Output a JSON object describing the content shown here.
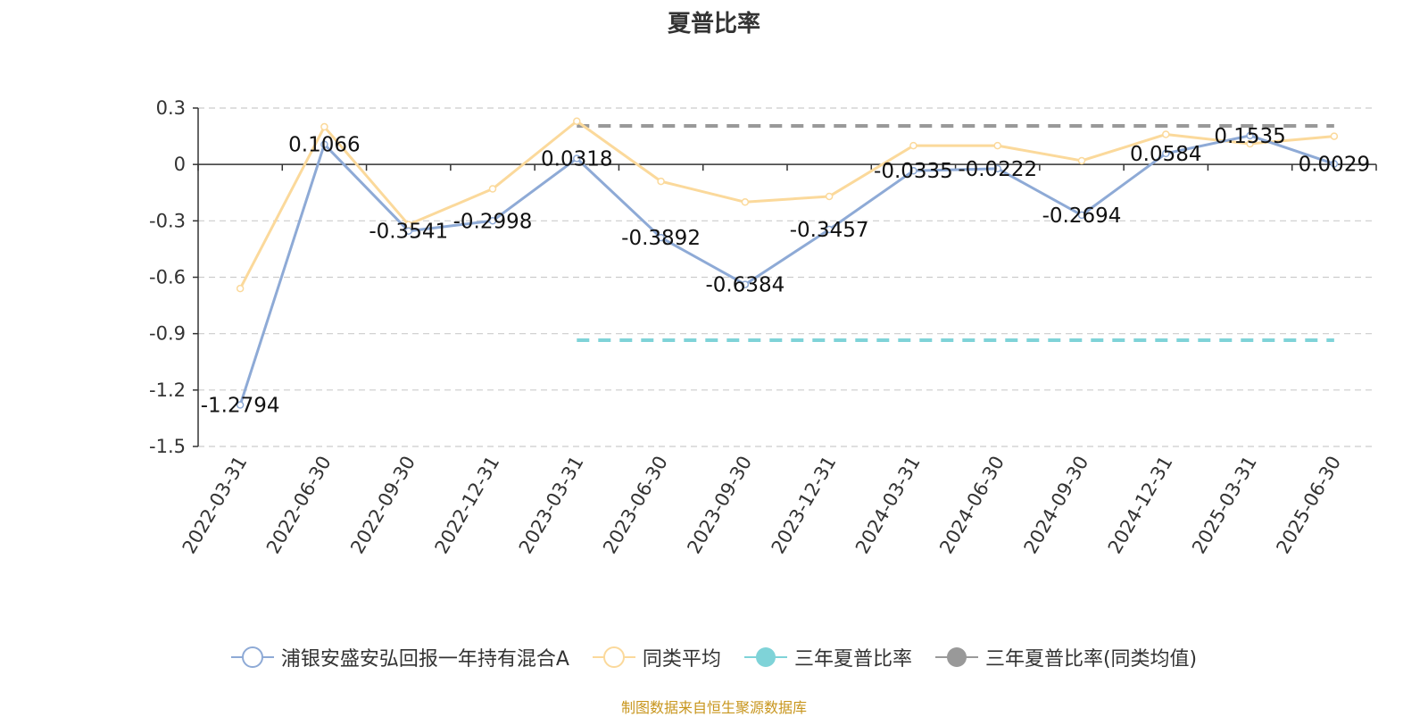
{
  "chart_data": {
    "type": "line",
    "title": "夏普比率",
    "categories": [
      "2022-03-31",
      "2022-06-30",
      "2022-09-30",
      "2022-12-31",
      "2023-03-31",
      "2023-06-30",
      "2023-09-30",
      "2023-12-31",
      "2024-03-31",
      "2024-06-30",
      "2024-09-30",
      "2024-12-31",
      "2025-03-31",
      "2025-06-30"
    ],
    "ylim": [
      -1.5,
      0.3
    ],
    "yticks": [
      "0.3",
      "0",
      "-0.3",
      "-0.6",
      "-0.9",
      "-1.2",
      "-1.5"
    ],
    "grid": true,
    "legend_position": "bottom",
    "series": [
      {
        "name": "浦银安盛安弘回报一年持有混合A",
        "color": "#8eaad6",
        "values": [
          -1.2794,
          0.1066,
          -0.3541,
          -0.2998,
          0.0318,
          -0.3892,
          -0.6384,
          -0.3457,
          -0.0335,
          -0.0222,
          -0.2694,
          0.0584,
          0.1535,
          0.0029
        ],
        "labels": [
          "-1.2794",
          "0.1066",
          "-0.3541",
          "-0.2998",
          "0.0318",
          "-0.3892",
          "-0.6384",
          "-0.3457",
          "-0.0335",
          "-0.0222",
          "-0.2694",
          "0.0584",
          "0.1535",
          "0.0029"
        ]
      },
      {
        "name": "同类平均",
        "color": "#fbd99b",
        "values": [
          -0.66,
          0.2,
          -0.32,
          -0.13,
          0.23,
          -0.09,
          -0.2,
          -0.17,
          0.1,
          0.1,
          0.02,
          0.16,
          0.11,
          0.15
        ]
      },
      {
        "name": "三年夏普比率",
        "color": "#7fd3d8",
        "dashed": true,
        "start_index": 4,
        "end_index": 13,
        "value": -0.935
      },
      {
        "name": "三年夏普比率(同类均值)",
        "color": "#999999",
        "dashed": true,
        "start_index": 4,
        "end_index": 13,
        "value": 0.205
      }
    ]
  },
  "footer": "制图数据来自恒生聚源数据库"
}
